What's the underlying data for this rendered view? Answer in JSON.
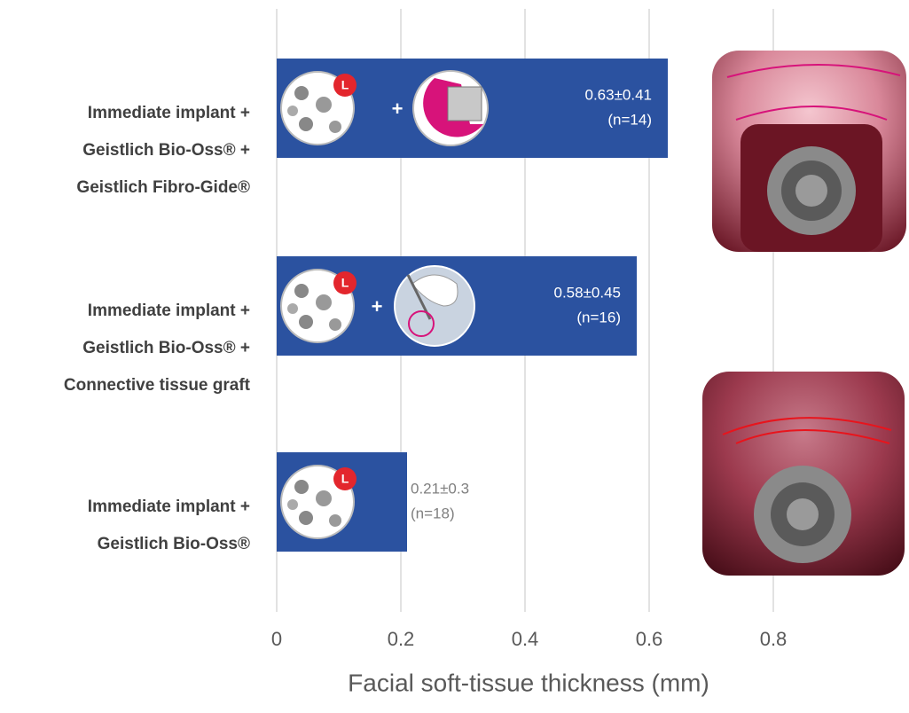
{
  "chart_data": {
    "type": "hbar",
    "x_label": "Facial soft-tissue thickness (mm)",
    "categories": [
      [
        "Immediate implant +",
        "Geistlich Bio-Oss® +",
        "Geistlich Fibro-Gide®"
      ],
      [
        "Immediate implant +",
        "Geistlich Bio-Oss® +",
        "Connective tissue graft"
      ],
      [
        "Immediate implant +",
        "Geistlich Bio-Oss®"
      ]
    ],
    "values": [
      0.63,
      0.58,
      0.21
    ],
    "value_labels": [
      "0.63±0.41",
      "0.58±0.45",
      "0.21±0.3"
    ],
    "sample_labels": [
      "(n=14)",
      "(n=16)",
      "(n=18)"
    ],
    "color": "#2b52a0",
    "xlim": [
      0,
      1
    ],
    "xticks": [
      0,
      0.2,
      0.4,
      0.6,
      0.8
    ],
    "grid": true
  }
}
